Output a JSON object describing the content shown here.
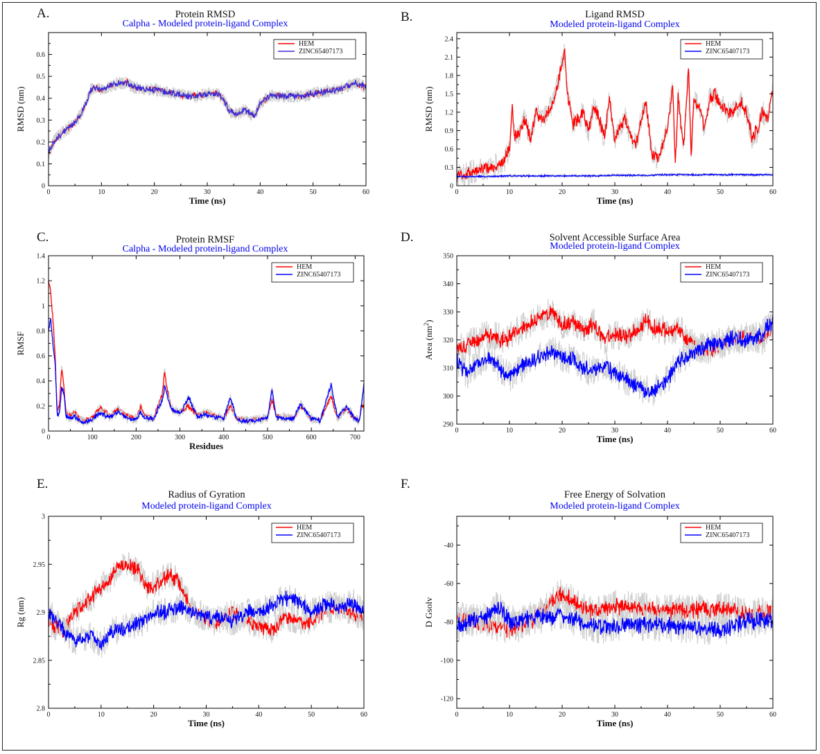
{
  "chart_data": [
    {
      "id": "A",
      "panel_label": "A.",
      "type": "line",
      "title": "Protein RMSD",
      "subtitle": "Calpha - Modeled protein-ligand Complex",
      "xlabel": "Time (ns)",
      "ylabel": "RMSD (nm)",
      "xlim": [
        0,
        60
      ],
      "ylim": [
        0,
        0.7
      ],
      "xticks": [
        0,
        10,
        20,
        30,
        40,
        50,
        60
      ],
      "yticks": [
        0,
        0.1,
        0.2,
        0.3,
        0.4,
        0.5,
        0.6
      ],
      "legend_position": "top-right",
      "series": [
        {
          "name": "HEM",
          "color": "#ff0000",
          "noise": 0.012,
          "x": [
            0,
            1,
            2,
            3,
            4,
            5,
            6,
            7,
            8,
            9,
            10,
            12,
            14,
            15,
            16,
            18,
            20,
            22,
            24,
            26,
            28,
            30,
            32,
            33,
            34,
            35,
            36,
            37,
            38,
            39,
            40,
            42,
            45,
            48,
            50,
            52,
            55,
            57,
            58,
            59,
            60
          ],
          "y": [
            0.15,
            0.2,
            0.23,
            0.25,
            0.27,
            0.29,
            0.32,
            0.37,
            0.44,
            0.45,
            0.44,
            0.46,
            0.47,
            0.47,
            0.45,
            0.44,
            0.44,
            0.43,
            0.42,
            0.41,
            0.41,
            0.42,
            0.42,
            0.4,
            0.35,
            0.33,
            0.33,
            0.35,
            0.33,
            0.32,
            0.38,
            0.41,
            0.41,
            0.41,
            0.42,
            0.43,
            0.44,
            0.46,
            0.47,
            0.46,
            0.45
          ]
        },
        {
          "name": "ZINC65407173",
          "color": "#3a2bd6",
          "noise": 0.012,
          "x": [
            0,
            1,
            2,
            3,
            4,
            5,
            6,
            7,
            8,
            9,
            10,
            12,
            14,
            15,
            16,
            18,
            20,
            22,
            24,
            26,
            28,
            30,
            32,
            33,
            34,
            35,
            36,
            37,
            38,
            39,
            40,
            42,
            45,
            48,
            50,
            52,
            55,
            57,
            58,
            59,
            60
          ],
          "y": [
            0.15,
            0.2,
            0.23,
            0.25,
            0.27,
            0.29,
            0.32,
            0.37,
            0.44,
            0.45,
            0.44,
            0.46,
            0.47,
            0.47,
            0.45,
            0.44,
            0.44,
            0.43,
            0.42,
            0.41,
            0.41,
            0.42,
            0.42,
            0.4,
            0.35,
            0.33,
            0.33,
            0.35,
            0.33,
            0.32,
            0.38,
            0.41,
            0.41,
            0.41,
            0.42,
            0.43,
            0.44,
            0.46,
            0.47,
            0.46,
            0.45
          ]
        }
      ]
    },
    {
      "id": "B",
      "panel_label": "B.",
      "type": "line",
      "title": "Ligand RMSD",
      "subtitle": "Modeled protein-ligand Complex",
      "xlabel": "Time (ns)",
      "ylabel": "RMSD (nm)",
      "xlim": [
        0,
        60
      ],
      "ylim": [
        0,
        2.5
      ],
      "xticks": [
        0,
        10,
        20,
        30,
        40,
        50,
        60
      ],
      "yticks": [
        0,
        0.3,
        0.6,
        0.9,
        1.2,
        1.5,
        1.8,
        2.1,
        2.4
      ],
      "legend_position": "top-right",
      "series": [
        {
          "name": "HEM",
          "color": "#ff0000",
          "noise": 0.08,
          "x": [
            0,
            2,
            4,
            6,
            8,
            9,
            10,
            10.5,
            11,
            12,
            13,
            14,
            15,
            16,
            17,
            18,
            19,
            20,
            20.5,
            21,
            22,
            23,
            24,
            25,
            26,
            27,
            28,
            29,
            30,
            31,
            32,
            33,
            34,
            35,
            36,
            37,
            38,
            39,
            40,
            41,
            41.5,
            42,
            43,
            44,
            44.5,
            45,
            46,
            47,
            48,
            49,
            50,
            52,
            54,
            55,
            56,
            57,
            58,
            59,
            60
          ],
          "y": [
            0.15,
            0.2,
            0.26,
            0.3,
            0.35,
            0.4,
            0.6,
            1.3,
            0.8,
            0.9,
            1.1,
            0.75,
            1.2,
            1.1,
            1.15,
            1.3,
            1.6,
            2.0,
            2.2,
            1.5,
            1.0,
            1.1,
            1.2,
            0.9,
            1.3,
            1.1,
            0.8,
            1.4,
            0.7,
            1.0,
            1.1,
            0.8,
            0.65,
            1.1,
            1.35,
            0.5,
            0.45,
            0.6,
            1.0,
            1.6,
            0.3,
            1.5,
            0.6,
            1.9,
            0.5,
            1.4,
            1.3,
            0.9,
            1.4,
            1.5,
            1.3,
            1.2,
            1.35,
            1.2,
            0.8,
            0.9,
            1.2,
            1.1,
            1.6
          ]
        },
        {
          "name": "ZINC65407173",
          "color": "#0000ff",
          "noise": 0.01,
          "x": [
            0,
            5,
            10,
            15,
            20,
            25,
            30,
            35,
            40,
            45,
            50,
            55,
            60
          ],
          "y": [
            0.15,
            0.15,
            0.16,
            0.16,
            0.16,
            0.16,
            0.17,
            0.17,
            0.18,
            0.18,
            0.18,
            0.18,
            0.18
          ]
        }
      ]
    },
    {
      "id": "C",
      "panel_label": "C.",
      "type": "line",
      "title": "Protein RMSF",
      "subtitle": "Calpha - Modeled protein-ligand Complex",
      "xlabel": "Residues",
      "ylabel": "RMSF",
      "xlim": [
        0,
        720
      ],
      "ylim": [
        0,
        1.4
      ],
      "xticks": [
        0,
        100,
        200,
        300,
        400,
        500,
        600,
        700
      ],
      "yticks": [
        0,
        0.2,
        0.4,
        0.6,
        0.8,
        1,
        1.2,
        1.4
      ],
      "legend_position": "top-right",
      "series": [
        {
          "name": "HEM",
          "color": "#ff0000",
          "noise": 0.015,
          "x": [
            0,
            5,
            10,
            15,
            20,
            25,
            30,
            35,
            40,
            50,
            60,
            70,
            80,
            100,
            110,
            120,
            140,
            160,
            170,
            180,
            200,
            210,
            220,
            240,
            260,
            265,
            270,
            280,
            300,
            320,
            340,
            360,
            380,
            400,
            415,
            430,
            460,
            480,
            500,
            510,
            520,
            560,
            575,
            600,
            620,
            645,
            660,
            680,
            700,
            710,
            715
          ],
          "y": [
            1.2,
            1.1,
            0.9,
            0.6,
            0.15,
            0.2,
            0.5,
            0.35,
            0.15,
            0.12,
            0.15,
            0.1,
            0.08,
            0.1,
            0.16,
            0.18,
            0.12,
            0.18,
            0.14,
            0.12,
            0.1,
            0.2,
            0.12,
            0.1,
            0.3,
            0.48,
            0.35,
            0.18,
            0.15,
            0.2,
            0.12,
            0.15,
            0.12,
            0.1,
            0.2,
            0.1,
            0.08,
            0.1,
            0.1,
            0.25,
            0.12,
            0.1,
            0.2,
            0.1,
            0.08,
            0.28,
            0.1,
            0.18,
            0.1,
            0.08,
            0.2
          ]
        },
        {
          "name": "ZINC65407173",
          "color": "#0000ff",
          "noise": 0.015,
          "x": [
            0,
            5,
            10,
            15,
            20,
            25,
            30,
            35,
            40,
            50,
            60,
            70,
            80,
            100,
            110,
            120,
            140,
            160,
            170,
            180,
            200,
            210,
            220,
            240,
            260,
            265,
            270,
            280,
            300,
            320,
            340,
            360,
            380,
            400,
            415,
            430,
            460,
            480,
            500,
            510,
            520,
            560,
            575,
            600,
            620,
            645,
            660,
            680,
            700,
            710,
            720
          ],
          "y": [
            0.8,
            0.9,
            0.7,
            0.55,
            0.12,
            0.15,
            0.35,
            0.3,
            0.12,
            0.1,
            0.12,
            0.08,
            0.07,
            0.09,
            0.13,
            0.14,
            0.11,
            0.15,
            0.13,
            0.1,
            0.09,
            0.15,
            0.1,
            0.1,
            0.25,
            0.36,
            0.3,
            0.18,
            0.14,
            0.27,
            0.11,
            0.13,
            0.11,
            0.1,
            0.27,
            0.09,
            0.08,
            0.09,
            0.1,
            0.33,
            0.11,
            0.1,
            0.22,
            0.1,
            0.08,
            0.37,
            0.1,
            0.2,
            0.1,
            0.08,
            0.38
          ]
        }
      ]
    },
    {
      "id": "D",
      "panel_label": "D.",
      "type": "line",
      "title": "Solvent Accessible Surface Area",
      "subtitle": "Modeled protein-ligand Complex",
      "xlabel": "Time (ns)",
      "ylabel": "Area (nm",
      "ylabel_sup": "2",
      "ylabel_tail": ")",
      "xlim": [
        0,
        60
      ],
      "ylim": [
        290,
        350
      ],
      "xticks": [
        0,
        10,
        20,
        30,
        40,
        50,
        60
      ],
      "yticks": [
        290,
        300,
        310,
        320,
        330,
        340,
        350
      ],
      "legend_position": "top-right",
      "series": [
        {
          "name": "HEM",
          "color": "#ff0000",
          "noise": 2.2,
          "x": [
            0,
            3,
            6,
            9,
            12,
            15,
            18,
            20,
            22,
            24,
            26,
            28,
            30,
            32,
            34,
            36,
            38,
            40,
            42,
            45,
            48,
            50,
            52,
            55,
            58,
            60
          ],
          "y": [
            316,
            319,
            322,
            320,
            324,
            327,
            330,
            325,
            327,
            323,
            326,
            320,
            322,
            321,
            323,
            327,
            324,
            323,
            324,
            318,
            316,
            318,
            320,
            321,
            320,
            325
          ]
        },
        {
          "name": "ZINC65407173",
          "color": "#0000ff",
          "noise": 2.2,
          "x": [
            0,
            2,
            4,
            6,
            8,
            10,
            13,
            15,
            18,
            20,
            22,
            25,
            28,
            30,
            33,
            35,
            37,
            40,
            42,
            45,
            48,
            50,
            53,
            55,
            58,
            60
          ],
          "y": [
            312,
            308,
            312,
            314,
            310,
            307,
            311,
            313,
            316,
            314,
            313,
            309,
            311,
            308,
            305,
            303,
            301,
            306,
            312,
            316,
            318,
            319,
            321,
            320,
            322,
            327
          ]
        }
      ]
    },
    {
      "id": "E",
      "panel_label": "E.",
      "type": "line",
      "title": "Radius of Gyration",
      "subtitle": "Modeled protein-ligand Complex",
      "xlabel": "Time (ns)",
      "ylabel": "Rg (nm)",
      "xlim": [
        0,
        60
      ],
      "ylim": [
        2.8,
        3.0
      ],
      "xticks": [
        0,
        10,
        20,
        30,
        40,
        50,
        60
      ],
      "yticks": [
        2.8,
        2.85,
        2.9,
        2.95,
        3
      ],
      "legend_position": "top-right",
      "series": [
        {
          "name": "HEM",
          "color": "#ff0000",
          "noise": 0.006,
          "x": [
            0,
            3,
            5,
            7,
            9,
            11,
            13,
            15,
            17,
            19,
            21,
            23,
            25,
            27,
            29,
            32,
            35,
            38,
            40,
            43,
            45,
            48,
            50,
            52,
            55,
            58,
            60
          ],
          "y": [
            2.89,
            2.88,
            2.9,
            2.91,
            2.92,
            2.93,
            2.945,
            2.95,
            2.945,
            2.925,
            2.93,
            2.94,
            2.93,
            2.905,
            2.895,
            2.89,
            2.9,
            2.89,
            2.885,
            2.88,
            2.895,
            2.89,
            2.89,
            2.9,
            2.905,
            2.9,
            2.895
          ]
        },
        {
          "name": "ZINC65407173",
          "color": "#0000ff",
          "noise": 0.006,
          "x": [
            0,
            3,
            5,
            8,
            10,
            12,
            15,
            18,
            20,
            22,
            25,
            28,
            30,
            33,
            35,
            38,
            40,
            42,
            45,
            48,
            50,
            53,
            55,
            58,
            60
          ],
          "y": [
            2.9,
            2.88,
            2.87,
            2.875,
            2.865,
            2.88,
            2.885,
            2.89,
            2.9,
            2.9,
            2.905,
            2.9,
            2.895,
            2.895,
            2.89,
            2.9,
            2.9,
            2.905,
            2.915,
            2.91,
            2.9,
            2.91,
            2.905,
            2.91,
            2.9
          ]
        }
      ]
    },
    {
      "id": "F",
      "panel_label": "F.",
      "type": "line",
      "title": "Free Energy of Solvation",
      "subtitle": "Modeled protein-ligand Complex",
      "xlabel": "Time (ns)",
      "ylabel": "D Gsolv",
      "xlim": [
        0,
        60
      ],
      "ylim": [
        -125,
        -25
      ],
      "xticks": [
        0,
        10,
        20,
        30,
        40,
        50,
        60
      ],
      "yticks": [
        -120,
        -100,
        -80,
        -60,
        -40
      ],
      "legend_position": "top-right",
      "series": [
        {
          "name": "HEM",
          "color": "#ff0000",
          "noise": 3.5,
          "x": [
            0,
            5,
            10,
            15,
            20,
            25,
            30,
            35,
            40,
            45,
            50,
            55,
            60
          ],
          "y": [
            -78,
            -80,
            -84,
            -78,
            -65,
            -75,
            -72,
            -73,
            -74,
            -74,
            -73,
            -76,
            -75
          ]
        },
        {
          "name": "ZINC65407173",
          "color": "#0000ff",
          "noise": 3.5,
          "x": [
            0,
            5,
            8,
            10,
            15,
            20,
            25,
            30,
            35,
            40,
            45,
            50,
            55,
            60
          ],
          "y": [
            -82,
            -78,
            -72,
            -80,
            -78,
            -76,
            -82,
            -83,
            -81,
            -82,
            -83,
            -84,
            -80,
            -79
          ]
        }
      ]
    }
  ]
}
